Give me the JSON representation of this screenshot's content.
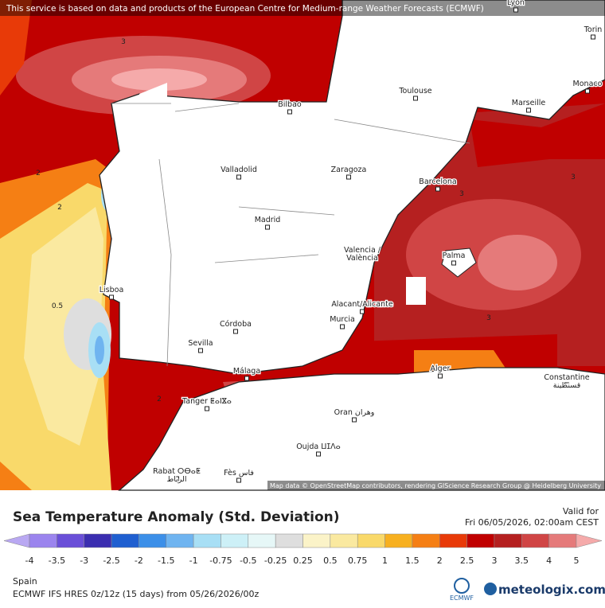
{
  "header": {
    "notice": "This service is based on data and products of the European Centre for Medium-range Weather Forecasts (ECMWF)"
  },
  "map": {
    "cities": [
      "Lyon",
      "Torin",
      "Monaco",
      "Toulouse",
      "Marseille",
      "Bilbao",
      "Valladolid",
      "Zaragoza",
      "Barcelona",
      "Madrid",
      "Valencia /\nValència",
      "Palma",
      "Lisboa",
      "Alacant/Alicante",
      "Murcia",
      "Córdoba",
      "Sevilla",
      "Málaga",
      "Alger",
      "Constantine\nقسنطينة",
      "Tanger ⵟⴰⵏⴵⴰ",
      "Oran وهران",
      "Oujda ⵡⵊⴷⴰ",
      "Rabat ⵔⴱⴰⵟ\nالرباط",
      "Fès فاس"
    ],
    "contour_labels": [
      3,
      2,
      2,
      0.5,
      3,
      3,
      3,
      2
    ],
    "attribution": "Map data © OpenStreetMap contributors, rendering GIScience Research Group @ Heidelberg University"
  },
  "legend": {
    "title": "Sea Temperature Anomaly (Std. Deviation)",
    "ticks": [
      -4,
      -3.5,
      -3,
      -2.5,
      -2,
      -1.5,
      -1,
      -0.75,
      -0.5,
      -0.25,
      0.25,
      0.5,
      0.75,
      1,
      1.5,
      2,
      2.5,
      3,
      3.5,
      4,
      5
    ],
    "colors": [
      "#b9a8f2",
      "#9b84ee",
      "#6a4fd8",
      "#3b2eb0",
      "#1f5fd0",
      "#3c8fe8",
      "#6fb4f0",
      "#a8dff5",
      "#cdf0f7",
      "#e6f7f7",
      "#dedede",
      "#fbf3c8",
      "#fae9a0",
      "#f9d96a",
      "#f7b020",
      "#f57f14",
      "#e83a08",
      "#c00000",
      "#b52020",
      "#d04545",
      "#e57a7a",
      "#f5aaaa"
    ]
  },
  "valid": {
    "label": "Valid for",
    "time": "Fri 06/05/2026, 02:00am CEST"
  },
  "footer": {
    "region": "Spain",
    "model": "ECMWF IFS HRES 0z/12z (15 days) from  05/26/2026/00z",
    "logo_ecmwf": "ECMWF",
    "logo_site": "meteologix.com"
  }
}
